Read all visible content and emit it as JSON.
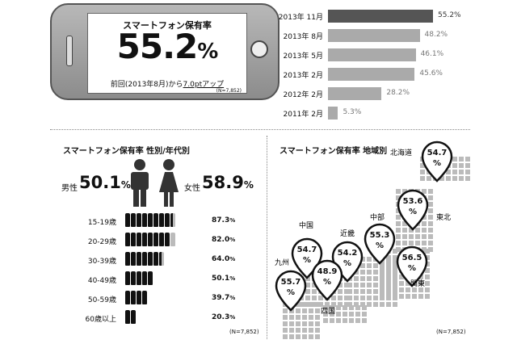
{
  "phone": {
    "title": "スマートフォン保有率",
    "rate": "55.2",
    "unit": "%",
    "sub_prefix": "前回(2013年8月)から",
    "sub_change": "7.0ptアップ",
    "n": "(N=7,852)"
  },
  "trend": {
    "bar_color_latest": "#555555",
    "bar_color": "#aaaaaa",
    "items": [
      {
        "label": "2013年 11月",
        "value": 55.2,
        "text": "55.2%"
      },
      {
        "label": "2013年 8月",
        "value": 48.2,
        "text": "48.2%"
      },
      {
        "label": "2013年 5月",
        "value": 46.1,
        "text": "46.1%"
      },
      {
        "label": "2013年 2月",
        "value": 45.6,
        "text": "45.6%"
      },
      {
        "label": "2012年 2月",
        "value": 28.2,
        "text": "28.2%"
      },
      {
        "label": "2011年 2月",
        "value": 5.3,
        "text": "5.3%"
      }
    ]
  },
  "gender": {
    "title": "スマートフォン保有率 性別/年代別",
    "male_label": "男性",
    "male_value": "50.1",
    "female_label": "女性",
    "female_value": "58.9",
    "pct": "%",
    "icons": [
      "male-icon",
      "female-icon"
    ],
    "n": "(N=7,852)"
  },
  "age": {
    "pct": "%",
    "items": [
      {
        "label": "15-19歳",
        "value": 87.3,
        "text": "87.3"
      },
      {
        "label": "20-29歳",
        "value": 82.0,
        "text": "82.0"
      },
      {
        "label": "30-39歳",
        "value": 64.0,
        "text": "64.0"
      },
      {
        "label": "40-49歳",
        "value": 50.1,
        "text": "50.1"
      },
      {
        "label": "50-59歳",
        "value": 39.7,
        "text": "39.7"
      },
      {
        "label": "60歳以上",
        "value": 20.3,
        "text": "20.3"
      }
    ]
  },
  "region": {
    "title": "スマートフォン保有率 地域別",
    "n": "(N=7,852)",
    "items": [
      {
        "name": "北海道",
        "value": "54.7"
      },
      {
        "name": "東北",
        "value": "53.6"
      },
      {
        "name": "関東",
        "value": "56.5"
      },
      {
        "name": "中部",
        "value": "55.3"
      },
      {
        "name": "近畿",
        "value": "54.2"
      },
      {
        "name": "中国",
        "value": "54.7"
      },
      {
        "name": "四国",
        "value": "48.9"
      },
      {
        "name": "九州",
        "value": "55.7"
      }
    ],
    "pct": "%"
  },
  "chart_data": [
    {
      "type": "bar",
      "title": "",
      "categories": [
        "2013年 11月",
        "2013年 8月",
        "2013年 5月",
        "2013年 2月",
        "2012年 2月",
        "2011年 2月"
      ],
      "values": [
        55.2,
        48.2,
        46.1,
        45.6,
        28.2,
        5.3
      ],
      "orientation": "horizontal"
    },
    {
      "type": "bar",
      "title": "スマートフォン保有率 性別/年代別",
      "categories": [
        "男性",
        "女性",
        "15-19歳",
        "20-29歳",
        "30-39歳",
        "40-49歳",
        "50-59歳",
        "60歳以上"
      ],
      "values": [
        50.1,
        58.9,
        87.3,
        82.0,
        64.0,
        50.1,
        39.7,
        20.3
      ]
    },
    {
      "type": "table",
      "title": "スマートフォン保有率 地域別",
      "categories": [
        "北海道",
        "東北",
        "関東",
        "中部",
        "近畿",
        "中国",
        "四国",
        "九州"
      ],
      "values": [
        54.7,
        53.6,
        56.5,
        55.3,
        54.2,
        54.7,
        48.9,
        55.7
      ]
    }
  ]
}
